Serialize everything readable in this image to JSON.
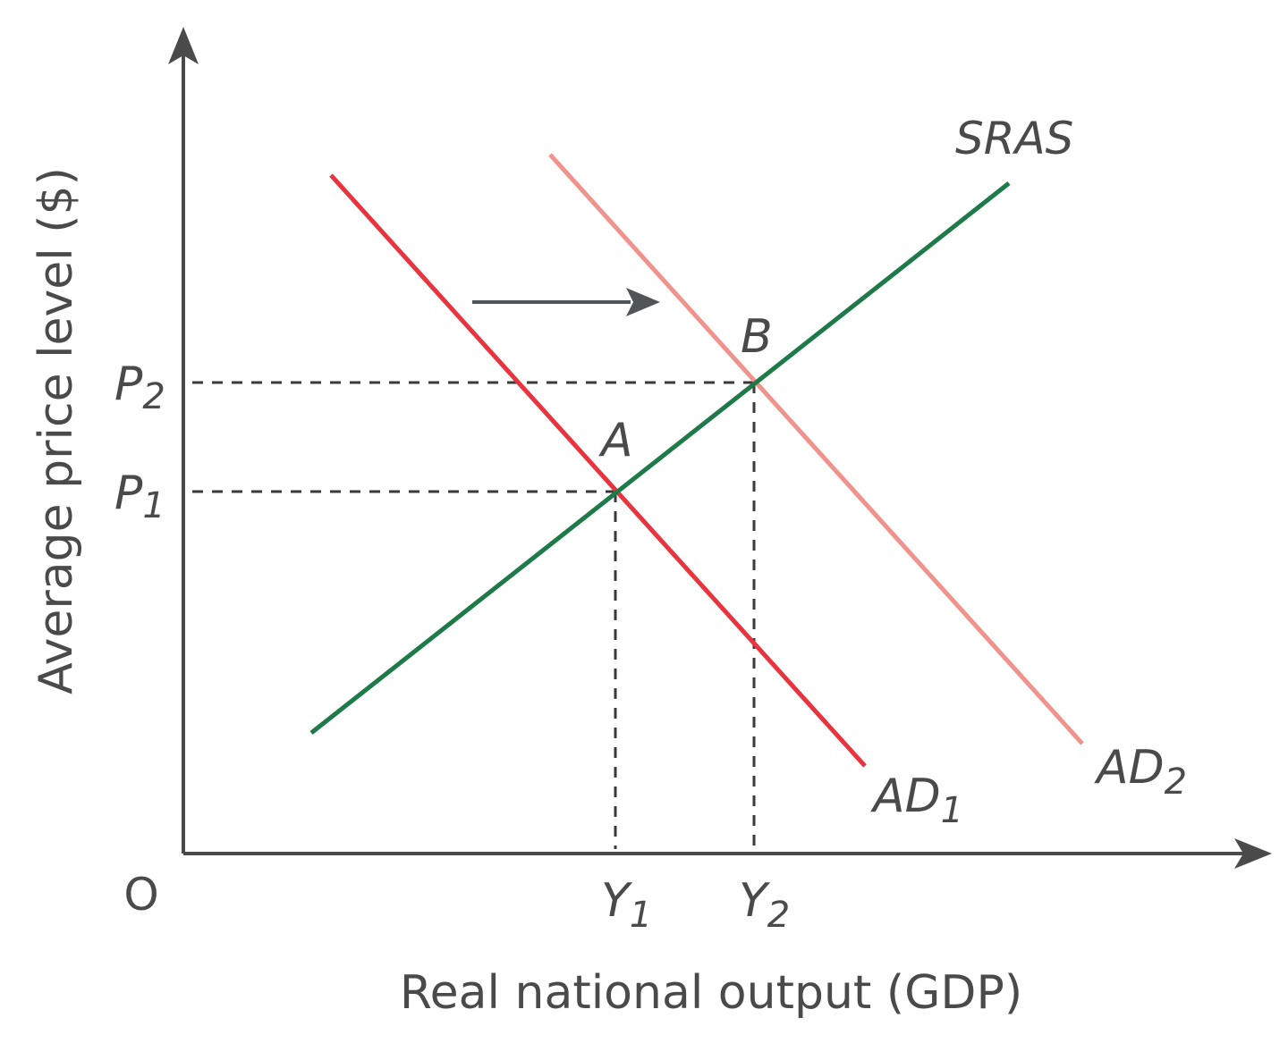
{
  "axes": {
    "y_label": "Average price level ($)",
    "x_label": "Real national output (GDP)",
    "origin": "O"
  },
  "curves": {
    "sras": "SRAS",
    "ad1": {
      "base": "AD",
      "sub": "1"
    },
    "ad2": {
      "base": "AD",
      "sub": "2"
    }
  },
  "points": {
    "a": "A",
    "b": "B"
  },
  "prices": {
    "p1": {
      "base": "P",
      "sub": "1"
    },
    "p2": {
      "base": "P",
      "sub": "2"
    }
  },
  "outputs": {
    "y1": {
      "base": "Y",
      "sub": "1"
    },
    "y2": {
      "base": "Y",
      "sub": "2"
    }
  },
  "colors": {
    "axis": "#4a4a4a",
    "sras": "#1f7a4a",
    "ad1": "#e8343f",
    "ad2": "#f0938c",
    "guide": "#3a3a3a",
    "shift_arrow": "#505558"
  }
}
